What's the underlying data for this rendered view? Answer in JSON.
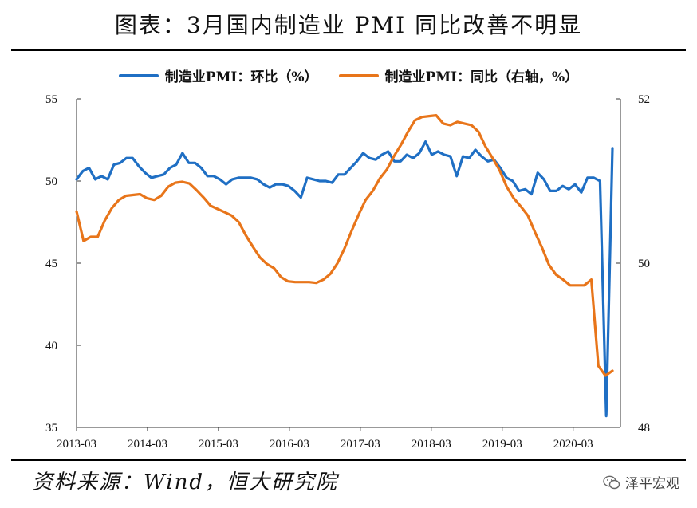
{
  "title": "图表：3月国内制造业 PMI 同比改善不明显",
  "source": "资料来源：Wind，恒大研究院",
  "brand": "泽平宏观",
  "colors": {
    "series1": "#1f6fc4",
    "series2": "#e8751a"
  },
  "chart_data": {
    "type": "line",
    "title": "图表：3月国内制造业 PMI 同比改善不明显",
    "legend_position": "top",
    "grid": false,
    "x_tick_labels": [
      "2013-03",
      "2014-03",
      "2015-03",
      "2016-03",
      "2017-03",
      "2018-03",
      "2019-03",
      "2020-03"
    ],
    "x_start": "2013-03",
    "x_end": "2020-03",
    "y_left": {
      "lim": [
        35,
        55
      ],
      "ticks": [
        35,
        40,
        45,
        50,
        55
      ]
    },
    "y_right": {
      "lim": [
        48,
        52
      ],
      "ticks": [
        48,
        50,
        52
      ]
    },
    "series": [
      {
        "name": "制造业PMI：环比（%）",
        "axis": "left",
        "color": "#1f6fc4",
        "values": [
          50.1,
          50.6,
          50.8,
          50.1,
          50.3,
          50.1,
          51.0,
          51.1,
          51.4,
          51.4,
          50.9,
          50.5,
          50.2,
          50.3,
          50.4,
          50.8,
          51.0,
          51.7,
          51.1,
          51.1,
          50.8,
          50.3,
          50.3,
          50.1,
          49.8,
          50.1,
          50.2,
          50.2,
          50.2,
          50.1,
          49.8,
          49.6,
          49.8,
          49.8,
          49.7,
          49.4,
          49.0,
          50.2,
          50.1,
          50.0,
          50.0,
          49.9,
          50.4,
          50.4,
          50.8,
          51.2,
          51.7,
          51.4,
          51.3,
          51.6,
          51.8,
          51.2,
          51.2,
          51.6,
          51.4,
          51.7,
          52.4,
          51.6,
          51.8,
          51.6,
          51.5,
          50.3,
          51.5,
          51.4,
          51.9,
          51.5,
          51.2,
          51.3,
          50.8,
          50.2,
          50.0,
          49.4,
          49.5,
          49.2,
          50.5,
          50.1,
          49.4,
          49.4,
          49.7,
          49.5,
          49.8,
          49.3,
          50.2,
          50.2,
          50.0,
          35.7,
          52.0
        ]
      },
      {
        "name": "制造业PMI：同比（右轴，%）",
        "axis": "right",
        "color": "#e8751a",
        "values": [
          50.63,
          50.27,
          50.32,
          50.32,
          50.52,
          50.67,
          50.77,
          50.82,
          50.83,
          50.84,
          50.79,
          50.77,
          50.82,
          50.93,
          50.98,
          50.99,
          50.97,
          50.89,
          50.8,
          50.7,
          50.66,
          50.62,
          50.58,
          50.5,
          50.34,
          50.2,
          50.07,
          49.99,
          49.94,
          49.83,
          49.78,
          49.77,
          49.77,
          49.77,
          49.76,
          49.8,
          49.87,
          50.0,
          50.18,
          50.39,
          50.59,
          50.77,
          50.88,
          51.03,
          51.14,
          51.3,
          51.44,
          51.6,
          51.74,
          51.78,
          51.79,
          51.8,
          51.7,
          51.68,
          51.72,
          51.7,
          51.68,
          51.6,
          51.42,
          51.28,
          51.13,
          50.93,
          50.79,
          50.69,
          50.58,
          50.38,
          50.19,
          49.98,
          49.86,
          49.8,
          49.73,
          49.73,
          49.73,
          49.8,
          48.75,
          48.63,
          48.69
        ]
      }
    ]
  }
}
